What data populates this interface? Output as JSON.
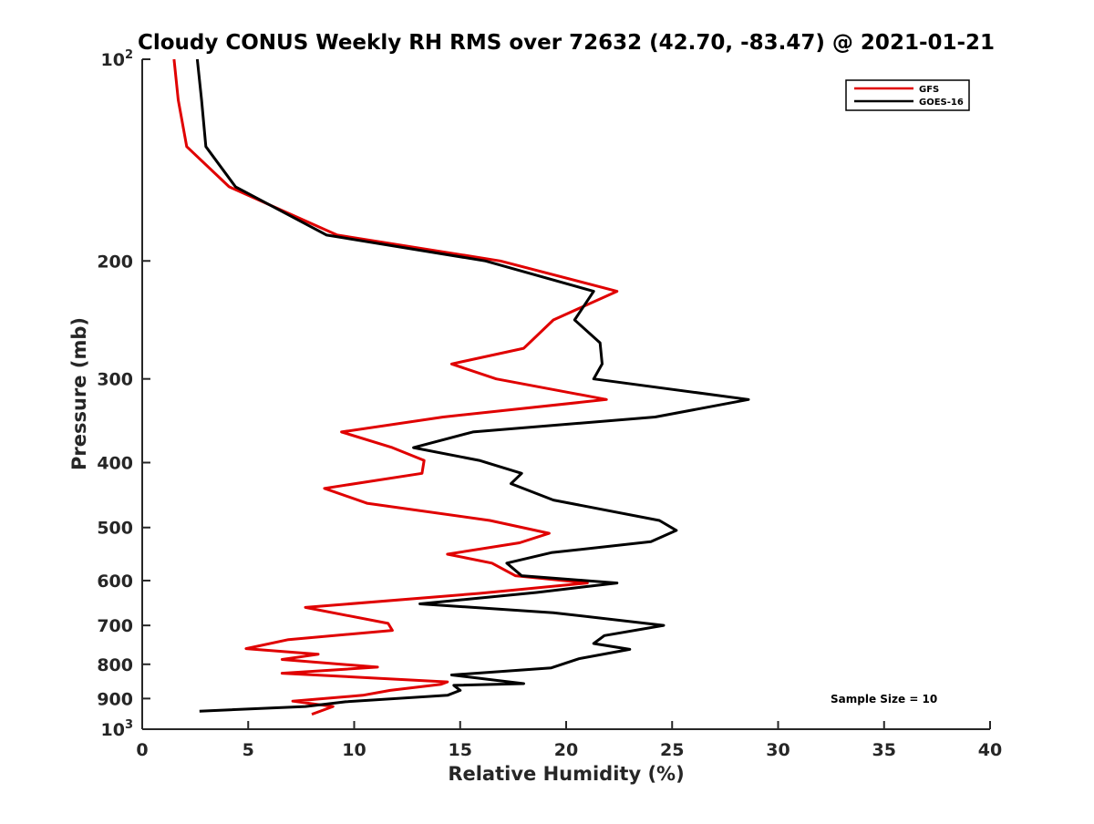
{
  "chart_data": {
    "type": "line",
    "title": "Cloudy CONUS Weekly RH RMS over 72632 (42.70, -83.47) @ 2021-01-21",
    "xlabel": "Relative Humidity (%)",
    "ylabel": "Pressure (mb)",
    "xlim": [
      0,
      40
    ],
    "ylim": [
      1000,
      100
    ],
    "yscale": "log",
    "y_reversed": true,
    "grid": false,
    "legend_position": "top-right",
    "x_ticks": [
      "0",
      "5",
      "10",
      "15",
      "20",
      "25",
      "30",
      "35",
      "40"
    ],
    "y_ticks": [
      {
        "value": 100,
        "base": "10",
        "exp": "2"
      },
      {
        "value": 200,
        "label": "200"
      },
      {
        "value": 300,
        "label": "300"
      },
      {
        "value": 400,
        "label": "400"
      },
      {
        "value": 500,
        "label": "500"
      },
      {
        "value": 600,
        "label": "600"
      },
      {
        "value": 700,
        "label": "700"
      },
      {
        "value": 800,
        "label": "800"
      },
      {
        "value": 900,
        "label": "900"
      },
      {
        "value": 1000,
        "base": "10",
        "exp": "3"
      }
    ],
    "annotation": "Sample Size = 10",
    "series": [
      {
        "name": "GFS",
        "color": "#e00000",
        "x": [
          1.5,
          1.7,
          2.1,
          4.1,
          9.2,
          16.9,
          22.4,
          19.4,
          18.0,
          14.6,
          16.7,
          21.9,
          14.2,
          9.4,
          11.8,
          13.3,
          13.2,
          8.6,
          10.6,
          16.4,
          19.2,
          17.8,
          14.4,
          16.5,
          17.6,
          21.0,
          15.9,
          7.7,
          11.6,
          11.8,
          6.9,
          4.9,
          8.3,
          6.6,
          11.1,
          6.6,
          14.4,
          14.1,
          11.7,
          10.4,
          7.1,
          9.0,
          8.0
        ],
        "y": [
          100,
          115,
          135,
          155,
          183,
          200,
          222,
          245,
          270,
          285,
          300,
          322,
          342,
          360,
          380,
          397,
          415,
          437,
          460,
          488,
          510,
          527,
          548,
          565,
          590,
          605,
          627,
          658,
          695,
          712,
          735,
          758,
          773,
          787,
          808,
          825,
          850,
          857,
          875,
          890,
          908,
          925,
          950
        ]
      },
      {
        "name": "GOES-16",
        "color": "#000000",
        "x": [
          2.6,
          2.8,
          3.0,
          4.4,
          8.7,
          16.2,
          21.3,
          20.4,
          21.6,
          21.7,
          21.3,
          28.6,
          24.2,
          15.6,
          12.8,
          15.9,
          17.9,
          17.4,
          19.4,
          24.4,
          25.2,
          24.0,
          19.3,
          17.2,
          17.9,
          22.4,
          18.6,
          13.1,
          19.4,
          24.6,
          21.8,
          21.3,
          23.0,
          20.6,
          19.3,
          14.6,
          18.0,
          14.7,
          15.0,
          14.4,
          9.6,
          7.7,
          2.7
        ],
        "y": [
          100,
          115,
          135,
          155,
          183,
          200,
          222,
          245,
          265,
          285,
          300,
          322,
          342,
          360,
          380,
          397,
          415,
          430,
          455,
          488,
          505,
          525,
          545,
          565,
          590,
          605,
          625,
          650,
          670,
          700,
          725,
          745,
          760,
          785,
          810,
          830,
          855,
          860,
          875,
          890,
          910,
          925,
          940
        ]
      }
    ]
  }
}
